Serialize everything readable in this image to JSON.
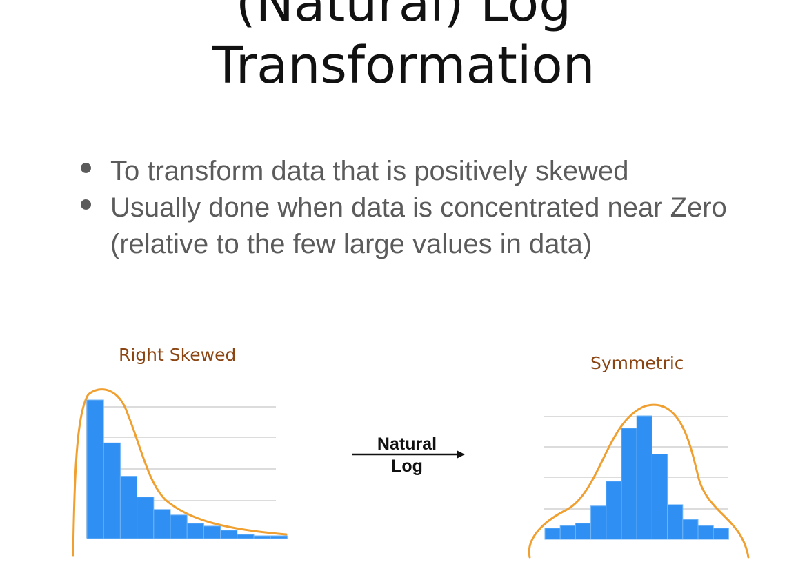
{
  "slide": {
    "title_lines": [
      "(Natural) Log",
      "Transformation"
    ],
    "bullets": [
      "To transform data that is positively skewed",
      "Usually done when data is concentrated near Zero (relative to the few large values in data)"
    ]
  },
  "diagram": {
    "left_label": "Right Skewed",
    "right_label": "Symmetric",
    "arrow_label_line1": "Natural",
    "arrow_label_line2": "Log",
    "colors": {
      "bars": "#2f8ff2",
      "bar_border": "#6fb4f7",
      "curve": "#f0a030",
      "label": "#8b4513",
      "grid": "#d0d0d0"
    }
  },
  "chart_data": [
    {
      "type": "bar",
      "title": "Right Skewed",
      "values": [
        100,
        69,
        45,
        30,
        21,
        17,
        11,
        9,
        6,
        3,
        2,
        2
      ],
      "ylim": [
        0,
        100
      ],
      "grid": true,
      "overlay_curve": "right-skewed density"
    },
    {
      "type": "bar",
      "title": "Symmetric",
      "values": [
        9,
        11,
        13,
        27,
        47,
        90,
        100,
        69,
        28,
        16,
        11,
        9
      ],
      "ylim": [
        0,
        100
      ],
      "grid": true,
      "overlay_curve": "bell-shaped density"
    }
  ]
}
